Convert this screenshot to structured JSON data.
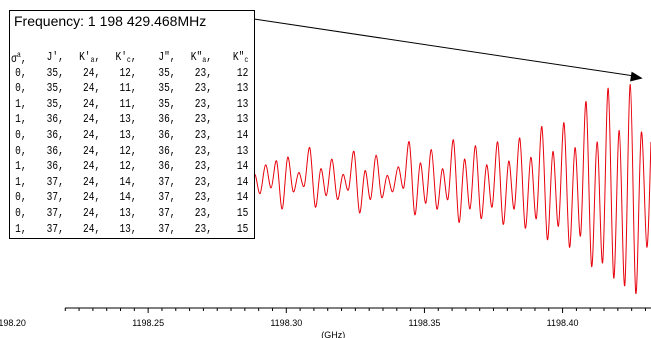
{
  "chart_data": {
    "type": "line",
    "xlabel": "(GHz)",
    "ylabel": "",
    "title": "",
    "xlim": [
      1198.2,
      1198.432
    ],
    "ylim": [
      -1.25,
      1.15
    ],
    "grid": false,
    "legend": "none",
    "x_ticks": [
      1198.2,
      1198.25,
      1198.3,
      1198.35,
      1198.4
    ],
    "x_tick_labels": [
      "1198.20",
      "1198.25",
      "1198.30",
      "1198.35",
      "1198.40"
    ],
    "series": [
      {
        "color": "#e8000b",
        "x_start": 1198.2705,
        "x_end": 1198.432,
        "x": [
          1198.2705,
          1198.2725,
          1198.2745,
          1198.2765,
          1198.2785,
          1198.2805,
          1198.2825,
          1198.2845,
          1198.2865,
          1198.2885,
          1198.2905,
          1198.2925,
          1198.2945,
          1198.2965,
          1198.2985,
          1198.3005,
          1198.3025,
          1198.3045,
          1198.3065,
          1198.3085,
          1198.3105,
          1198.3125,
          1198.3145,
          1198.3165,
          1198.3185,
          1198.3205,
          1198.3225,
          1198.3245,
          1198.3265,
          1198.3285,
          1198.3305,
          1198.3325,
          1198.3345,
          1198.3365,
          1198.3385,
          1198.3405,
          1198.3425,
          1198.3445,
          1198.3465,
          1198.3485,
          1198.3505,
          1198.3525,
          1198.3545,
          1198.3565,
          1198.3585,
          1198.3605,
          1198.3625,
          1198.3645,
          1198.3665,
          1198.3685,
          1198.3705,
          1198.3725,
          1198.3745,
          1198.3765,
          1198.3785,
          1198.3805,
          1198.3825,
          1198.3845,
          1198.3865,
          1198.3885,
          1198.3905,
          1198.3925,
          1198.3945,
          1198.3965,
          1198.3985,
          1198.4005,
          1198.4025,
          1198.4045,
          1198.4065,
          1198.4085,
          1198.4105,
          1198.4125,
          1198.4145,
          1198.4165,
          1198.4185,
          1198.4205,
          1198.4225,
          1198.4245,
          1198.4265,
          1198.4285,
          1198.4305,
          1198.432
        ],
        "y": [
          0.0,
          0.04,
          -0.06,
          0.08,
          -0.1,
          0.05,
          -0.18,
          0.38,
          -0.25,
          0.06,
          -0.14,
          0.16,
          -0.08,
          0.2,
          -0.3,
          0.24,
          -0.12,
          0.08,
          -0.06,
          0.34,
          -0.28,
          0.12,
          -0.16,
          0.22,
          -0.2,
          0.06,
          -0.1,
          0.3,
          -0.34,
          0.1,
          -0.2,
          0.26,
          -0.18,
          0.05,
          -0.12,
          0.14,
          -0.08,
          0.4,
          -0.36,
          0.18,
          -0.24,
          0.32,
          -0.3,
          0.12,
          -0.2,
          0.42,
          -0.44,
          0.22,
          -0.3,
          0.36,
          -0.4,
          0.16,
          -0.28,
          0.4,
          -0.46,
          0.2,
          -0.3,
          0.44,
          -0.5,
          0.24,
          -0.4,
          0.56,
          -0.62,
          0.3,
          -0.48,
          0.6,
          -0.7,
          0.34,
          -0.58,
          0.82,
          -0.9,
          0.4,
          -0.86,
          0.96,
          -1.02,
          0.52,
          -1.1,
          1.0,
          -1.18,
          0.5,
          -0.7,
          0.4
        ]
      }
    ],
    "annotations": [
      {
        "text": "Frequency: 1 198 429.468MHz",
        "arrow_to_x": 1198.429,
        "table": {
          "header": [
            {
              "base": "σ",
              "sup": "a",
              "sub": "",
              "sep": ","
            },
            {
              "base": "J'",
              "sup": "",
              "sub": "",
              "sep": ","
            },
            {
              "base": "K'",
              "sup": "",
              "sub": "a",
              "sep": ","
            },
            {
              "base": "K'",
              "sup": "",
              "sub": "c",
              "sep": ","
            },
            {
              "base": "J\"",
              "sup": "",
              "sub": "",
              "sep": ","
            },
            {
              "base": "K\"",
              "sup": "",
              "sub": "a",
              "sep": ","
            },
            {
              "base": "K\"",
              "sup": "",
              "sub": "c",
              "sep": ""
            }
          ],
          "rows": [
            [
              "0,",
              "35,",
              "24,",
              "12,",
              "35,",
              "23,",
              "12"
            ],
            [
              "0,",
              "35,",
              "24,",
              "11,",
              "35,",
              "23,",
              "13"
            ],
            [
              "1,",
              "35,",
              "24,",
              "11,",
              "35,",
              "23,",
              "13"
            ],
            [
              "1,",
              "36,",
              "24,",
              "13,",
              "36,",
              "23,",
              "13"
            ],
            [
              "0,",
              "36,",
              "24,",
              "13,",
              "36,",
              "23,",
              "14"
            ],
            [
              "0,",
              "36,",
              "24,",
              "12,",
              "36,",
              "23,",
              "13"
            ],
            [
              "1,",
              "36,",
              "24,",
              "12,",
              "36,",
              "23,",
              "14"
            ],
            [
              "1,",
              "37,",
              "24,",
              "14,",
              "37,",
              "23,",
              "14"
            ],
            [
              "0,",
              "37,",
              "24,",
              "14,",
              "37,",
              "23,",
              "14"
            ],
            [
              "0,",
              "37,",
              "24,",
              "13,",
              "37,",
              "23,",
              "15"
            ],
            [
              "1,",
              "37,",
              "24,",
              "13,",
              "37,",
              "23,",
              "15"
            ]
          ]
        }
      }
    ]
  }
}
